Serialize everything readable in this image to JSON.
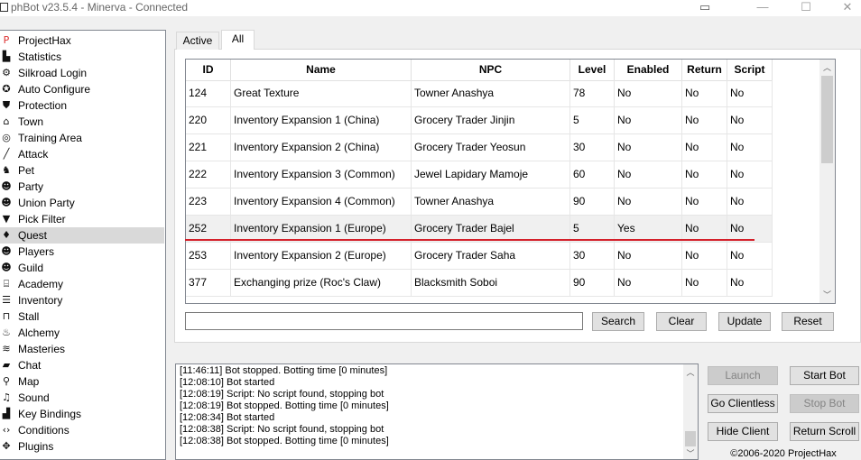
{
  "window": {
    "title": "phBot v23.5.4 - Minerva - Connected"
  },
  "sidebar": {
    "selected": "Quest",
    "items": [
      {
        "label": "ProjectHax",
        "icon": "projecthax-logo-icon"
      },
      {
        "label": "Statistics",
        "icon": "statistics-icon"
      },
      {
        "label": "Silkroad Login",
        "icon": "gears-icon"
      },
      {
        "label": "Auto Configure",
        "icon": "auto-configure-icon"
      },
      {
        "label": "Protection",
        "icon": "shield-icon"
      },
      {
        "label": "Town",
        "icon": "town-icon"
      },
      {
        "label": "Training Area",
        "icon": "target-icon"
      },
      {
        "label": "Attack",
        "icon": "sword-icon"
      },
      {
        "label": "Pet",
        "icon": "dog-icon"
      },
      {
        "label": "Party",
        "icon": "party-icon"
      },
      {
        "label": "Union Party",
        "icon": "union-icon"
      },
      {
        "label": "Pick Filter",
        "icon": "filter-icon"
      },
      {
        "label": "Quest",
        "icon": "quest-icon"
      },
      {
        "label": "Players",
        "icon": "players-icon"
      },
      {
        "label": "Guild",
        "icon": "guild-icon"
      },
      {
        "label": "Academy",
        "icon": "academy-icon"
      },
      {
        "label": "Inventory",
        "icon": "inventory-icon"
      },
      {
        "label": "Stall",
        "icon": "stall-icon"
      },
      {
        "label": "Alchemy",
        "icon": "alchemy-icon"
      },
      {
        "label": "Masteries",
        "icon": "book-icon"
      },
      {
        "label": "Chat",
        "icon": "chat-icon"
      },
      {
        "label": "Map",
        "icon": "map-pin-icon"
      },
      {
        "label": "Sound",
        "icon": "bell-icon"
      },
      {
        "label": "Key Bindings",
        "icon": "keyboard-icon"
      },
      {
        "label": "Conditions",
        "icon": "code-icon"
      },
      {
        "label": "Plugins",
        "icon": "puzzle-icon"
      }
    ]
  },
  "tabs": [
    {
      "label": "Active"
    },
    {
      "label": "All",
      "active": true
    }
  ],
  "table": {
    "columns": [
      "ID",
      "Name",
      "NPC",
      "Level",
      "Enabled",
      "Return",
      "Script"
    ],
    "rows": [
      [
        "124",
        "Great Texture",
        "Towner Anashya",
        "78",
        "No",
        "No",
        "No"
      ],
      [
        "220",
        "Inventory Expansion 1 (China)",
        "Grocery Trader Jinjin",
        "5",
        "No",
        "No",
        "No"
      ],
      [
        "221",
        "Inventory Expansion 2 (China)",
        "Grocery Trader Yeosun",
        "30",
        "No",
        "No",
        "No"
      ],
      [
        "222",
        "Inventory Expansion 3 (Common)",
        "Jewel Lapidary Mamoje",
        "60",
        "No",
        "No",
        "No"
      ],
      [
        "223",
        "Inventory Expansion 4 (Common)",
        "Towner Anashya",
        "90",
        "No",
        "No",
        "No"
      ],
      [
        "252",
        "Inventory Expansion 1 (Europe)",
        "Grocery Trader Bajel",
        "5",
        "Yes",
        "No",
        "No"
      ],
      [
        "253",
        "Inventory Expansion 2 (Europe)",
        "Grocery Trader Saha",
        "30",
        "No",
        "No",
        "No"
      ],
      [
        "377",
        "Exchanging prize (Roc's Claw)",
        "Blacksmith Soboi",
        "90",
        "No",
        "No",
        "No"
      ]
    ],
    "highlighted_row": "252",
    "annotation_color": "#d4202a"
  },
  "search": {
    "value": "",
    "search_label": "Search",
    "clear_label": "Clear",
    "update_label": "Update",
    "reset_label": "Reset"
  },
  "log": [
    "[11:46:11] Bot stopped. Botting time [0 minutes]",
    "[12:08:10] Bot started",
    "[12:08:19] Script: No script found, stopping bot",
    "[12:08:19] Bot stopped. Botting time [0 minutes]",
    "[12:08:34] Bot started",
    "[12:08:38] Script: No script found, stopping bot",
    "[12:08:38] Bot stopped. Botting time [0 minutes]"
  ],
  "controls": {
    "launch": "Launch",
    "start_bot": "Start Bot",
    "go_clientless": "Go Clientless",
    "stop_bot": "Stop Bot",
    "hide_client": "Hide Client",
    "return_scroll": "Return Scroll"
  },
  "footer": {
    "copyright": "©2006-2020 ProjectHax"
  }
}
